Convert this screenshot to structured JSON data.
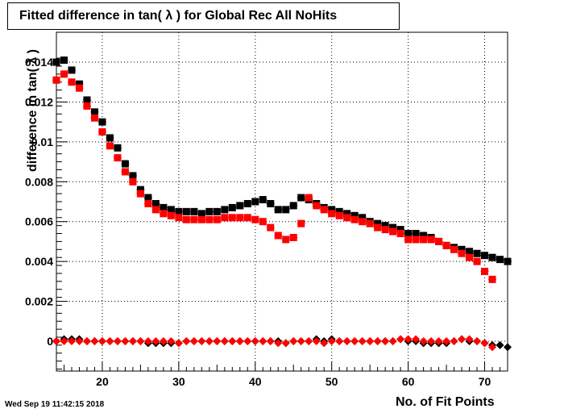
{
  "footer": {
    "date": "Wed Sep 19 11:42:15 2018"
  },
  "chart_data": {
    "type": "scatter",
    "title": "Fitted difference in tan( λ ) for Global Rec All NoHits",
    "xlabel": "No. of Fit Points",
    "ylabel": "difference in tan( λ )",
    "xlim": [
      14,
      73
    ],
    "ylim": [
      -0.0015,
      0.0155
    ],
    "xticks": [
      20,
      30,
      40,
      50,
      60,
      70
    ],
    "yticks": [
      0,
      0.002,
      0.004,
      0.006,
      0.008,
      0.01,
      0.012,
      0.014
    ],
    "ytick_labels": [
      "0",
      "0.002",
      "0.004",
      "0.006",
      "0.008",
      "0.01",
      "0.012",
      "0.014"
    ],
    "grid": true,
    "series": [
      {
        "marker": "square",
        "color": "#000000",
        "x": [
          14,
          15,
          16,
          17,
          18,
          19,
          20,
          21,
          22,
          23,
          24,
          25,
          26,
          27,
          28,
          29,
          30,
          31,
          32,
          33,
          34,
          35,
          36,
          37,
          38,
          39,
          40,
          41,
          42,
          43,
          44,
          45,
          46,
          47,
          48,
          49,
          50,
          51,
          52,
          53,
          54,
          55,
          56,
          57,
          58,
          59,
          60,
          61,
          62,
          63,
          64,
          65,
          66,
          67,
          68,
          69,
          70,
          71,
          72,
          73
        ],
        "y": [
          0.014,
          0.0141,
          0.0136,
          0.0129,
          0.0121,
          0.0115,
          0.011,
          0.0102,
          0.0097,
          0.0089,
          0.0083,
          0.0076,
          0.0072,
          0.0069,
          0.0067,
          0.0066,
          0.0065,
          0.0065,
          0.0065,
          0.0064,
          0.0065,
          0.0065,
          0.0066,
          0.0067,
          0.0068,
          0.0069,
          0.007,
          0.0071,
          0.0069,
          0.0066,
          0.0066,
          0.0068,
          0.0072,
          0.0071,
          0.0069,
          0.0067,
          0.0066,
          0.0065,
          0.0064,
          0.0063,
          0.0062,
          0.006,
          0.0059,
          0.0058,
          0.0057,
          0.0056,
          0.0054,
          0.0054,
          0.0053,
          0.0052,
          0.005,
          0.0048,
          0.0047,
          0.0046,
          0.0045,
          0.0044,
          0.0043,
          0.0042,
          0.0041,
          0.004
        ]
      },
      {
        "marker": "square",
        "color": "#ff0000",
        "x": [
          14,
          15,
          16,
          17,
          18,
          19,
          20,
          21,
          22,
          23,
          24,
          25,
          26,
          27,
          28,
          29,
          30,
          31,
          32,
          33,
          34,
          35,
          36,
          37,
          38,
          39,
          40,
          41,
          42,
          43,
          44,
          45,
          46,
          47,
          48,
          49,
          50,
          51,
          52,
          53,
          54,
          55,
          56,
          57,
          58,
          59,
          60,
          61,
          62,
          63,
          64,
          65,
          66,
          67,
          68,
          69,
          70,
          71
        ],
        "y": [
          0.0131,
          0.0134,
          0.013,
          0.0127,
          0.0118,
          0.0112,
          0.0105,
          0.0098,
          0.0092,
          0.0085,
          0.008,
          0.0074,
          0.0069,
          0.0066,
          0.0064,
          0.0063,
          0.0062,
          0.0061,
          0.0061,
          0.0061,
          0.0061,
          0.0061,
          0.0062,
          0.0062,
          0.0062,
          0.0062,
          0.0061,
          0.006,
          0.0057,
          0.0053,
          0.0051,
          0.0052,
          0.0059,
          0.0072,
          0.0068,
          0.0066,
          0.0064,
          0.0063,
          0.0062,
          0.0061,
          0.006,
          0.0059,
          0.0057,
          0.0056,
          0.0055,
          0.0054,
          0.0051,
          0.0051,
          0.0051,
          0.0051,
          0.005,
          0.0048,
          0.0046,
          0.0044,
          0.0042,
          0.004,
          0.0035,
          0.0031
        ]
      },
      {
        "marker": "diamond",
        "color": "#000000",
        "x": [
          14,
          15,
          16,
          17,
          18,
          19,
          20,
          21,
          22,
          23,
          24,
          25,
          26,
          27,
          28,
          29,
          30,
          31,
          32,
          33,
          34,
          35,
          36,
          37,
          38,
          39,
          40,
          41,
          42,
          43,
          44,
          45,
          46,
          47,
          48,
          49,
          50,
          51,
          52,
          53,
          54,
          55,
          56,
          57,
          58,
          59,
          60,
          61,
          62,
          63,
          64,
          65,
          66,
          67,
          68,
          69,
          70,
          71,
          72,
          73
        ],
        "y": [
          0.0,
          0.0001,
          0.0001,
          0.0001,
          0.0,
          0.0,
          0.0,
          0.0,
          0.0,
          0.0,
          0.0,
          0.0,
          -0.0001,
          -0.0001,
          -0.0001,
          -0.0001,
          -0.0001,
          0.0,
          0.0,
          0.0,
          0.0,
          0.0,
          0.0,
          0.0,
          0.0,
          0.0,
          0.0,
          0.0,
          0.0,
          0.0,
          -0.0001,
          0.0,
          0.0,
          0.0,
          0.0001,
          0.0,
          0.0001,
          0.0,
          0.0,
          0.0,
          0.0,
          0.0,
          0.0,
          0.0,
          0.0,
          0.0001,
          0.0,
          0.0,
          -0.0001,
          -0.0001,
          -0.0001,
          -0.0001,
          0.0,
          0.0001,
          0.0,
          0.0,
          -0.0001,
          -0.0002,
          -0.0002,
          -0.0003
        ]
      },
      {
        "marker": "diamond",
        "color": "#ff0000",
        "x": [
          14,
          15,
          16,
          17,
          18,
          19,
          20,
          21,
          22,
          23,
          24,
          25,
          26,
          27,
          28,
          29,
          30,
          31,
          32,
          33,
          34,
          35,
          36,
          37,
          38,
          39,
          40,
          41,
          42,
          43,
          44,
          45,
          46,
          47,
          48,
          49,
          50,
          51,
          52,
          53,
          54,
          55,
          56,
          57,
          58,
          59,
          60,
          61,
          62,
          63,
          64,
          65,
          66,
          67,
          68,
          69,
          70,
          71
        ],
        "y": [
          0.0,
          0.0,
          0.0,
          0.0,
          0.0,
          0.0,
          0.0,
          0.0,
          0.0,
          0.0,
          0.0,
          0.0,
          0.0,
          0.0,
          0.0,
          0.0,
          -0.0001,
          0.0,
          0.0,
          0.0,
          0.0,
          0.0,
          0.0,
          0.0,
          0.0,
          0.0,
          0.0,
          0.0,
          0.0,
          -0.0001,
          -0.0001,
          0.0,
          0.0,
          0.0,
          0.0,
          -0.0001,
          0.0,
          0.0,
          0.0,
          0.0,
          0.0,
          0.0,
          0.0,
          0.0,
          0.0,
          0.0001,
          0.0001,
          0.0001,
          0.0,
          0.0,
          0.0,
          0.0,
          0.0,
          0.0001,
          0.0001,
          0.0,
          -0.0001,
          -0.0003
        ]
      }
    ]
  }
}
